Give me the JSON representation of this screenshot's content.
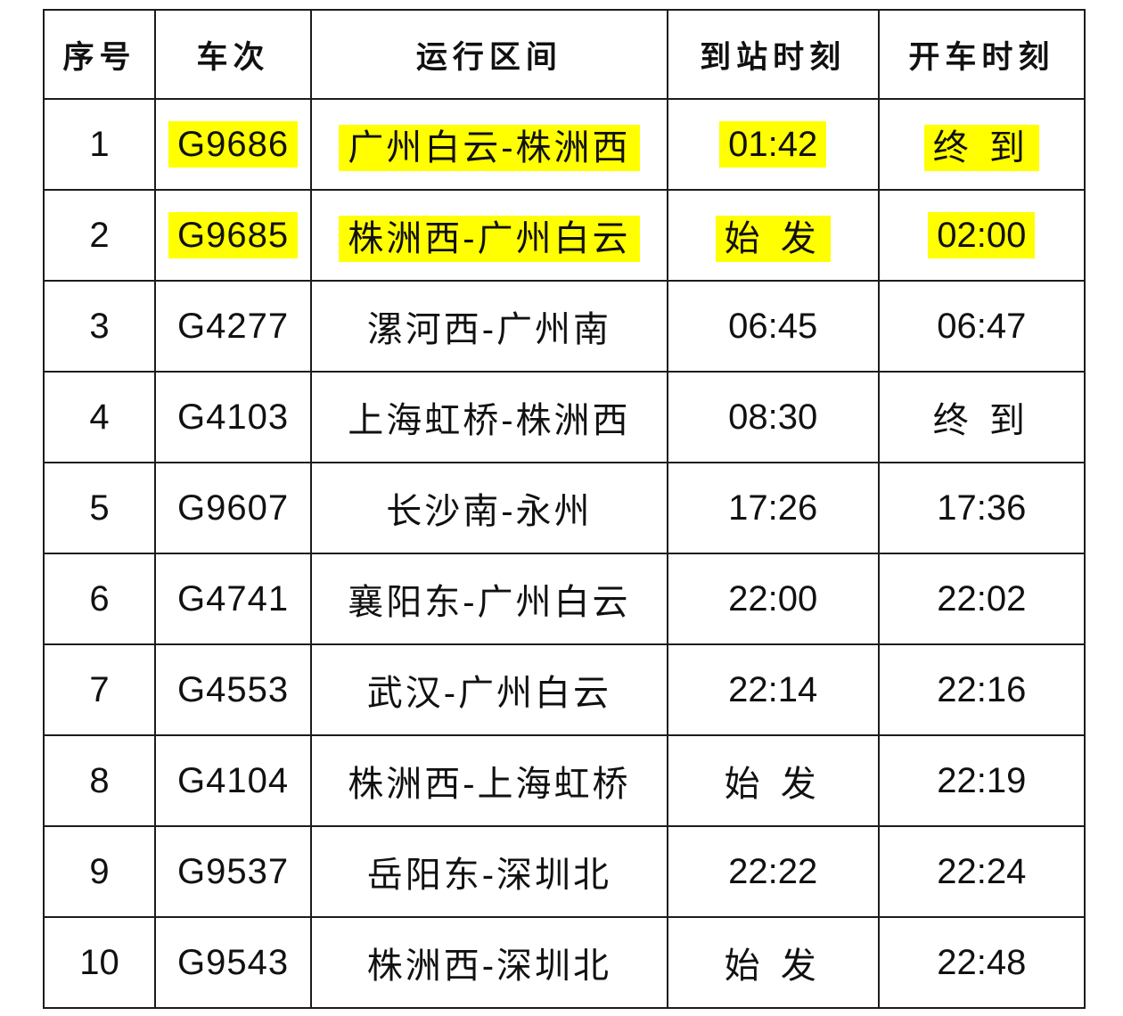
{
  "table": {
    "columns": [
      {
        "key": "index",
        "label": "序号"
      },
      {
        "key": "train",
        "label": "车次"
      },
      {
        "key": "route",
        "label": "运行区间"
      },
      {
        "key": "arrival",
        "label": "到站时刻"
      },
      {
        "key": "departure",
        "label": "开车时刻"
      }
    ],
    "highlight_color": "#ffff00",
    "terminal_label": "终 到",
    "origin_label": "始 发",
    "rows": [
      {
        "index": "1",
        "train": "G9686",
        "route": "广州白云-株洲西",
        "arrival": "01:42",
        "departure": "终 到",
        "arrival_is_text": false,
        "departure_is_text": true,
        "highlighted": true
      },
      {
        "index": "2",
        "train": "G9685",
        "route": "株洲西-广州白云",
        "arrival": "始 发",
        "departure": "02:00",
        "arrival_is_text": true,
        "departure_is_text": false,
        "highlighted": true
      },
      {
        "index": "3",
        "train": "G4277",
        "route": "漯河西-广州南",
        "arrival": "06:45",
        "departure": "06:47",
        "arrival_is_text": false,
        "departure_is_text": false,
        "highlighted": false
      },
      {
        "index": "4",
        "train": "G4103",
        "route": "上海虹桥-株洲西",
        "arrival": "08:30",
        "departure": "终 到",
        "arrival_is_text": false,
        "departure_is_text": true,
        "highlighted": false
      },
      {
        "index": "5",
        "train": "G9607",
        "route": "长沙南-永州",
        "arrival": "17:26",
        "departure": "17:36",
        "arrival_is_text": false,
        "departure_is_text": false,
        "highlighted": false
      },
      {
        "index": "6",
        "train": "G4741",
        "route": "襄阳东-广州白云",
        "arrival": "22:00",
        "departure": "22:02",
        "arrival_is_text": false,
        "departure_is_text": false,
        "highlighted": false
      },
      {
        "index": "7",
        "train": "G4553",
        "route": "武汉-广州白云",
        "arrival": "22:14",
        "departure": "22:16",
        "arrival_is_text": false,
        "departure_is_text": false,
        "highlighted": false
      },
      {
        "index": "8",
        "train": "G4104",
        "route": "株洲西-上海虹桥",
        "arrival": "始 发",
        "departure": "22:19",
        "arrival_is_text": true,
        "departure_is_text": false,
        "highlighted": false
      },
      {
        "index": "9",
        "train": "G9537",
        "route": "岳阳东-深圳北",
        "arrival": "22:22",
        "departure": "22:24",
        "arrival_is_text": false,
        "departure_is_text": false,
        "highlighted": false
      },
      {
        "index": "10",
        "train": "G9543",
        "route": "株洲西-深圳北",
        "arrival": "始 发",
        "departure": "22:48",
        "arrival_is_text": true,
        "departure_is_text": false,
        "highlighted": false
      }
    ]
  }
}
